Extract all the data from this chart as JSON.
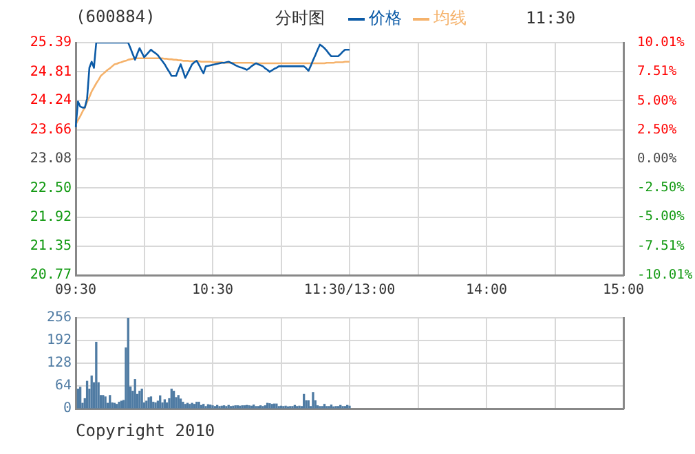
{
  "chart_data": [
    {
      "type": "line",
      "title": "分时图",
      "subtitle": "(600884)",
      "annotations": [
        "11:30"
      ],
      "legend": "top",
      "grid": true,
      "line_style": "solid",
      "marker": "none",
      "categories": [
        "09:30",
        null,
        null,
        null,
        null,
        null,
        null,
        null,
        null,
        null,
        null,
        null,
        null,
        null,
        null,
        null,
        null,
        null,
        null,
        null,
        null,
        null,
        null,
        null,
        null,
        null,
        null,
        null,
        null,
        null,
        null,
        null,
        null,
        null,
        null,
        null,
        null,
        null,
        null,
        null,
        null,
        null,
        null,
        null,
        null,
        null,
        null,
        null,
        null,
        null,
        null,
        null,
        null,
        null,
        null,
        null,
        null,
        null,
        null,
        null,
        "10:30",
        null,
        null,
        null,
        null,
        null,
        null,
        null,
        null,
        null,
        null,
        null,
        null,
        null,
        null,
        null,
        null,
        null,
        null,
        null,
        null,
        null,
        null,
        null,
        null,
        null,
        null,
        null,
        null,
        null,
        null,
        null,
        null,
        null,
        null,
        null,
        null,
        null,
        null,
        null,
        null,
        null,
        null,
        null,
        null,
        null,
        null,
        null,
        null,
        null,
        null,
        null,
        null,
        null,
        null,
        null,
        null,
        null,
        null,
        null,
        "11:30/13:00",
        null,
        null,
        null,
        null,
        null,
        null,
        null,
        null,
        null,
        null,
        null,
        null,
        null,
        null,
        null,
        null,
        null,
        null,
        null,
        null,
        null,
        null,
        null,
        null,
        null,
        null,
        null,
        null,
        null,
        null,
        null,
        null,
        null,
        null,
        null,
        null,
        null,
        null,
        null,
        null,
        null,
        null,
        null,
        null,
        null,
        null,
        null,
        null,
        null,
        null,
        null,
        null,
        null,
        null,
        null,
        null,
        null,
        null,
        null,
        "14:00",
        null,
        null,
        null,
        null,
        null,
        null,
        null,
        null,
        null,
        null,
        null,
        null,
        null,
        null,
        null,
        null,
        null,
        null,
        null,
        null,
        null,
        null,
        null,
        null,
        null,
        null,
        null,
        null,
        null,
        null,
        null,
        null,
        null,
        null,
        null,
        null,
        null,
        null,
        null,
        null,
        null,
        null,
        null,
        null,
        null,
        null,
        null,
        null,
        null,
        null,
        null,
        null,
        null,
        null,
        null,
        null,
        null,
        null,
        null,
        "15:00"
      ],
      "ylim": [
        20.77,
        25.39
      ],
      "yticks": [
        20.77,
        21.35,
        21.92,
        {
          "value": 22.5,
          "label": "22.50"
        },
        23.08,
        23.66,
        24.24,
        24.81,
        25.39
      ],
      "y2lim": [
        -10.01,
        10.01
      ],
      "y2ticks": [
        {
          "value": -10.01,
          "label": "-10.01%"
        },
        {
          "value": -7.51,
          "label": "-7.51%"
        },
        {
          "value": -5.0,
          "label": "-5.00%"
        },
        {
          "value": -2.5,
          "label": "-2.50%"
        },
        {
          "value": 0,
          "label": "0.00%"
        },
        {
          "value": 2.5,
          "label": "2.50%"
        },
        {
          "value": 5.0,
          "label": "5.00%"
        },
        {
          "value": 7.51,
          "label": "7.51%"
        },
        {
          "value": 10.01,
          "label": "10.01%"
        }
      ],
      "series": [
        {
          "name": "价格",
          "color": "#0b5aa6",
          "values": [
            23.71,
            24.22,
            24.12,
            24.1,
            24.1,
            24.28,
            24.89,
            25.01,
            24.89,
            25.39,
            25.39,
            25.39,
            25.39,
            25.39,
            25.39,
            25.39,
            25.39,
            25.39,
            25.39,
            25.39,
            25.39,
            25.39,
            25.39,
            25.39,
            25.28,
            25.16,
            25.05,
            25.17,
            25.28,
            25.19,
            25.1,
            25.15,
            25.2,
            25.25,
            25.21,
            25.18,
            25.14,
            25.08,
            25.02,
            24.96,
            24.88,
            24.81,
            24.73,
            24.73,
            24.73,
            24.85,
            24.96,
            24.83,
            24.69,
            24.78,
            24.87,
            24.96,
            25.0,
            25.03,
            24.95,
            24.86,
            24.78,
            24.92,
            24.93,
            24.94,
            24.95,
            24.96,
            24.97,
            24.98,
            24.99,
            24.99,
            25.0,
            25.01,
            24.99,
            24.97,
            24.94,
            24.92,
            24.9,
            24.89,
            24.87,
            24.85,
            24.88,
            24.92,
            24.95,
            24.98,
            24.96,
            24.94,
            24.92,
            24.88,
            24.85,
            24.81,
            24.84,
            24.87,
            24.89,
            24.92,
            24.92,
            24.92,
            24.92,
            24.92,
            24.92,
            24.92,
            24.92,
            24.92,
            24.92,
            24.92,
            24.92,
            24.88,
            24.83,
            24.93,
            25.04,
            25.14,
            25.25,
            25.35,
            25.32,
            25.28,
            25.23,
            25.17,
            25.12,
            25.12,
            25.12,
            25.12,
            25.16,
            25.21,
            25.25,
            25.25,
            25.25,
            null,
            null,
            null,
            null,
            null,
            null,
            null,
            null,
            null,
            null,
            null,
            null,
            null,
            null,
            null,
            null,
            null,
            null,
            null,
            null,
            null,
            null,
            null,
            null,
            null,
            null,
            null,
            null,
            null,
            null,
            null,
            null,
            null,
            null,
            null,
            null,
            null,
            null,
            null,
            null,
            null,
            null,
            null,
            null,
            null,
            null,
            null,
            null,
            null,
            null,
            null,
            null,
            null,
            null,
            null,
            null,
            null,
            null,
            null,
            null,
            null,
            null,
            null,
            null,
            null,
            null,
            null,
            null,
            null,
            null,
            null,
            null,
            null,
            null,
            null,
            null,
            null,
            null,
            null,
            null,
            null,
            null,
            null,
            null,
            null,
            null,
            null,
            null,
            null,
            null,
            null,
            null,
            null,
            null,
            null,
            null,
            null,
            null,
            null,
            null,
            null,
            null,
            null,
            null,
            null,
            null,
            null,
            null,
            null,
            null,
            null,
            null,
            null,
            null,
            null,
            null,
            null,
            null,
            null,
            null
          ]
        },
        {
          "name": "均线",
          "color": "#f5b26b",
          "values": [
            23.76,
            23.85,
            23.93,
            24.02,
            24.1,
            24.21,
            24.31,
            24.42,
            24.5,
            24.58,
            24.65,
            24.73,
            24.77,
            24.81,
            24.85,
            24.88,
            24.92,
            24.96,
            24.97,
            24.99,
            25.0,
            25.02,
            25.03,
            25.05,
            25.06,
            25.07,
            25.08,
            25.08,
            25.08,
            25.08,
            25.08,
            25.08,
            25.08,
            25.08,
            25.08,
            25.08,
            25.08,
            25.08,
            25.08,
            25.07,
            25.07,
            25.06,
            25.06,
            25.05,
            25.05,
            25.04,
            25.04,
            25.03,
            25.03,
            25.03,
            25.02,
            25.02,
            25.02,
            25.02,
            25.02,
            25.01,
            25.01,
            25.01,
            25.01,
            25.01,
            25.0,
            25.0,
            25.0,
            25.0,
            25.0,
            24.99,
            24.99,
            24.99,
            24.99,
            24.99,
            24.99,
            24.99,
            24.99,
            24.99,
            24.99,
            24.99,
            24.99,
            24.99,
            24.98,
            24.98,
            24.98,
            24.98,
            24.98,
            24.98,
            24.98,
            24.98,
            24.98,
            24.98,
            24.98,
            24.98,
            24.98,
            24.98,
            24.98,
            24.98,
            24.98,
            24.98,
            24.98,
            24.98,
            24.98,
            24.98,
            24.98,
            24.98,
            24.98,
            24.98,
            24.98,
            24.98,
            24.98,
            24.98,
            24.98,
            24.98,
            24.99,
            24.99,
            24.99,
            24.99,
            25.0,
            25.0,
            25.0,
            25.0,
            25.01,
            25.01,
            25.01,
            null,
            null,
            null,
            null,
            null,
            null,
            null,
            null,
            null,
            null,
            null,
            null,
            null,
            null,
            null,
            null,
            null,
            null,
            null,
            null,
            null,
            null,
            null,
            null,
            null,
            null,
            null,
            null,
            null,
            null,
            null,
            null,
            null,
            null,
            null,
            null,
            null,
            null,
            null,
            null,
            null,
            null,
            null,
            null,
            null,
            null,
            null,
            null,
            null,
            null,
            null,
            null,
            null,
            null,
            null,
            null,
            null,
            null,
            null,
            null,
            null,
            null,
            null,
            null,
            null,
            null,
            null,
            null,
            null,
            null,
            null,
            null,
            null,
            null,
            null,
            null,
            null,
            null,
            null,
            null,
            null,
            null,
            null,
            null,
            null,
            null,
            null,
            null,
            null,
            null,
            null,
            null,
            null,
            null,
            null,
            null,
            null,
            null,
            null,
            null,
            null,
            null,
            null,
            null,
            null,
            null,
            null,
            null,
            null,
            null,
            null,
            null,
            null,
            null,
            null,
            null,
            null,
            null,
            null,
            null
          ]
        }
      ]
    },
    {
      "type": "bar",
      "tick_labels": "y",
      "grid": true,
      "annotations": [
        "Copyright 2010"
      ],
      "color": "#4f7ba3",
      "categories": [
        null,
        null,
        null,
        null,
        null,
        null,
        null,
        null,
        null,
        null,
        null,
        null,
        null,
        null,
        null,
        null,
        null,
        null,
        null,
        null,
        null,
        null,
        null,
        null,
        null,
        null,
        null,
        null,
        null,
        null,
        null,
        null,
        null,
        null,
        null,
        null,
        null,
        null,
        null,
        null,
        null,
        null,
        null,
        null,
        null,
        null,
        null,
        null,
        null,
        null,
        null,
        null,
        null,
        null,
        null,
        null,
        null,
        null,
        null,
        null,
        null,
        null,
        null,
        null,
        null,
        null,
        null,
        null,
        null,
        null,
        null,
        null,
        null,
        null,
        null,
        null,
        null,
        null,
        null,
        null,
        null,
        null,
        null,
        null,
        null,
        null,
        null,
        null,
        null,
        null,
        null,
        null,
        null,
        null,
        null,
        null,
        null,
        null,
        null,
        null,
        null,
        null,
        null,
        null,
        null,
        null,
        null,
        null,
        null,
        null,
        null,
        null,
        null,
        null,
        null,
        null,
        null,
        null,
        null,
        null,
        null,
        null,
        null,
        null,
        null,
        null,
        null,
        null,
        null,
        null,
        null,
        null,
        null,
        null,
        null,
        null,
        null,
        null,
        null,
        null,
        null,
        null,
        null,
        null,
        null,
        null,
        null,
        null,
        null,
        null,
        null,
        null,
        null,
        null,
        null,
        null,
        null,
        null,
        null,
        null,
        null,
        null,
        null,
        null,
        null,
        null,
        null,
        null,
        null,
        null,
        null,
        null,
        null,
        null,
        null,
        null,
        null,
        null,
        null,
        null,
        null,
        null,
        null,
        null,
        null,
        null,
        null,
        null,
        null,
        null,
        null,
        null,
        null,
        null,
        null,
        null,
        null,
        null,
        null,
        null,
        null,
        null,
        null,
        null,
        null,
        null,
        null,
        null,
        null,
        null,
        null,
        null,
        null,
        null,
        null,
        null,
        null,
        null,
        null,
        null,
        null,
        null,
        null,
        null,
        null,
        null,
        null,
        null,
        null,
        null,
        null,
        null,
        null,
        null,
        null,
        null,
        null,
        null,
        null,
        null,
        null
      ],
      "ylim": [
        0,
        256
      ],
      "yticks": [
        0,
        64,
        128,
        192,
        256
      ],
      "values": [
        null,
        55,
        60,
        15,
        28,
        77,
        55,
        92,
        73,
        187,
        73,
        37,
        37,
        33,
        15,
        37,
        16,
        15,
        12,
        18,
        21,
        23,
        171,
        256,
        61,
        49,
        82,
        40,
        49,
        55,
        16,
        21,
        31,
        33,
        18,
        16,
        21,
        36,
        16,
        25,
        16,
        28,
        55,
        49,
        31,
        37,
        27,
        18,
        12,
        15,
        12,
        15,
        12,
        18,
        18,
        9,
        12,
        6,
        11,
        10,
        8,
        6,
        9,
        6,
        7,
        8,
        6,
        9,
        6,
        7,
        8,
        8,
        7,
        8,
        8,
        9,
        8,
        7,
        10,
        6,
        6,
        8,
        6,
        8,
        15,
        14,
        12,
        13,
        13,
        6,
        7,
        6,
        7,
        5,
        6,
        6,
        9,
        6,
        7,
        6,
        40,
        22,
        22,
        6,
        45,
        22,
        8,
        6,
        6,
        12,
        6,
        6,
        10,
        5,
        6,
        6,
        9,
        6,
        6,
        9,
        7,
        null,
        null,
        null,
        null,
        null,
        null,
        null,
        null,
        null,
        null,
        null,
        null,
        null,
        null,
        null,
        null,
        null,
        null,
        null,
        null,
        null,
        null,
        null,
        null,
        null,
        null,
        null,
        null,
        null,
        null,
        null,
        null,
        null,
        null,
        null,
        null,
        null,
        null,
        null,
        null,
        null,
        null,
        null,
        null,
        null,
        null,
        null,
        null,
        null,
        null,
        null,
        null,
        null,
        null,
        null,
        null,
        null,
        null,
        null,
        null,
        null,
        null,
        null,
        null,
        null,
        null,
        null,
        null,
        null,
        null,
        null,
        null,
        null,
        null,
        null,
        null,
        null,
        null,
        null,
        null,
        null,
        null,
        null,
        null,
        null,
        null,
        null,
        null,
        null,
        null,
        null,
        null,
        null,
        null,
        null,
        null,
        null,
        null,
        null,
        null,
        null,
        null,
        null,
        null,
        null,
        null,
        null,
        null,
        null,
        null,
        null,
        null,
        null,
        null,
        null,
        null,
        null,
        null,
        null,
        null
      ]
    }
  ]
}
